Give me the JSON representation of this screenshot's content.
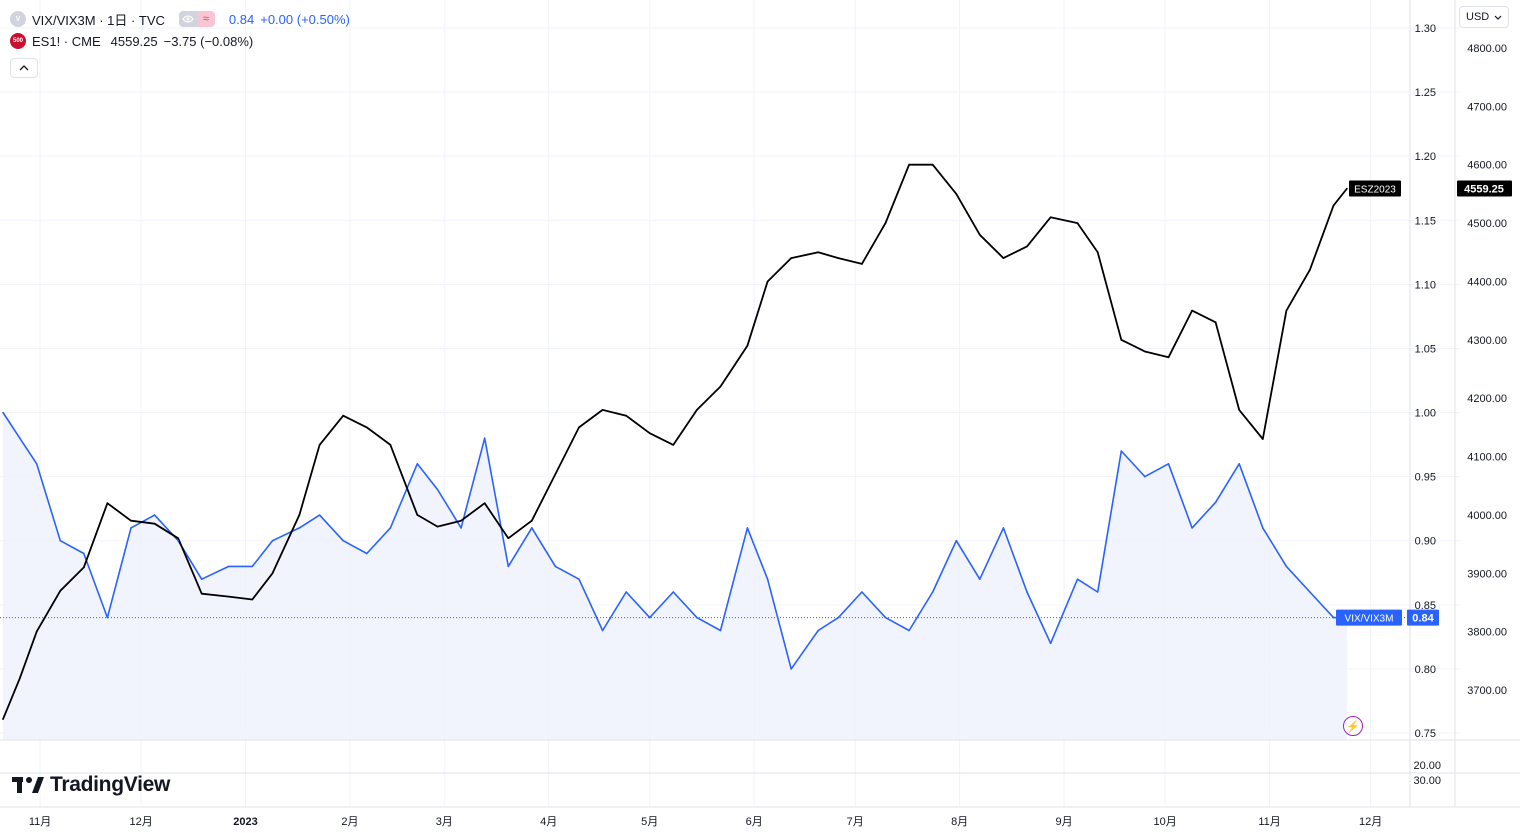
{
  "legend": {
    "main": {
      "badge": "V",
      "title": "VIX/VIX3M · 1日 · TVC",
      "value": "0.84",
      "change": "+0.00 (+0.50%)"
    },
    "compare": {
      "badge": "500",
      "title": "ES1! · CME",
      "value": "4559.25",
      "change": "−3.75 (−0.08%)"
    }
  },
  "currency": {
    "label": "USD"
  },
  "brand": {
    "name": "TradingView"
  },
  "colors": {
    "ratio": "#2962ff",
    "futures": "#000000",
    "grid": "#f0f3fa",
    "axis_text": "#131722",
    "ratio_fill": "#eef1fd"
  },
  "icons": {
    "eye": "eye-icon",
    "wave": "wave-icon",
    "collapse": "chevron-up-icon",
    "lightning": "lightning-icon",
    "currency_caret": "chevron-down-icon"
  },
  "chart_data": {
    "type": "line",
    "x": [
      "2022-10-21",
      "2022-10-26",
      "2022-10-31",
      "2022-11-07",
      "2022-11-14",
      "2022-11-21",
      "2022-11-28",
      "2022-12-05",
      "2022-12-12",
      "2022-12-19",
      "2022-12-27",
      "2023-01-03",
      "2023-01-09",
      "2023-01-17",
      "2023-01-23",
      "2023-01-30",
      "2023-02-06",
      "2023-02-13",
      "2023-02-21",
      "2023-02-27",
      "2023-03-06",
      "2023-03-13",
      "2023-03-20",
      "2023-03-27",
      "2023-04-03",
      "2023-04-10",
      "2023-04-17",
      "2023-04-24",
      "2023-05-01",
      "2023-05-08",
      "2023-05-15",
      "2023-05-22",
      "2023-05-30",
      "2023-06-05",
      "2023-06-12",
      "2023-06-20",
      "2023-06-26",
      "2023-07-03",
      "2023-07-10",
      "2023-07-17",
      "2023-07-24",
      "2023-07-31",
      "2023-08-07",
      "2023-08-14",
      "2023-08-21",
      "2023-08-28",
      "2023-09-05",
      "2023-09-11",
      "2023-09-18",
      "2023-09-25",
      "2023-10-02",
      "2023-10-09",
      "2023-10-16",
      "2023-10-23",
      "2023-10-30",
      "2023-11-06",
      "2023-11-13",
      "2023-11-20",
      "2023-11-24"
    ],
    "series": [
      {
        "name": "VIX/VIX3M",
        "axis": "left",
        "values": [
          1.0,
          0.98,
          0.96,
          0.9,
          0.89,
          0.84,
          0.91,
          0.92,
          0.9,
          0.87,
          0.88,
          0.88,
          0.9,
          0.91,
          0.92,
          0.9,
          0.89,
          0.91,
          0.96,
          0.94,
          0.91,
          0.98,
          0.88,
          0.91,
          0.88,
          0.87,
          0.83,
          0.86,
          0.84,
          0.86,
          0.84,
          0.83,
          0.91,
          0.87,
          0.8,
          0.83,
          0.84,
          0.86,
          0.84,
          0.83,
          0.86,
          0.9,
          0.87,
          0.91,
          0.86,
          0.82,
          0.87,
          0.86,
          0.97,
          0.95,
          0.96,
          0.91,
          0.93,
          0.96,
          0.91,
          0.88,
          0.86,
          0.84,
          0.84
        ]
      },
      {
        "name": "ES1!",
        "axis": "right",
        "values": [
          3650,
          3720,
          3800,
          3870,
          3910,
          4020,
          3990,
          3985,
          3960,
          3865,
          3860,
          3855,
          3900,
          4000,
          4120,
          4170,
          4150,
          4120,
          4000,
          3980,
          3990,
          4020,
          3960,
          3990,
          4070,
          4150,
          4180,
          4170,
          4140,
          4120,
          4180,
          4220,
          4290,
          4400,
          4440,
          4450,
          4440,
          4430,
          4500,
          4600,
          4600,
          4550,
          4480,
          4440,
          4460,
          4510,
          4500,
          4450,
          4300,
          4280,
          4270,
          4350,
          4330,
          4180,
          4130,
          4350,
          4420,
          4530,
          4559.25
        ]
      }
    ],
    "left_axis": {
      "ticks": [
        "0.75",
        "0.80",
        "0.85",
        "0.90",
        "0.95",
        "1.00",
        "1.05",
        "1.10",
        "1.15",
        "1.20",
        "1.25",
        "1.30"
      ],
      "range": [
        0.74,
        1.31
      ]
    },
    "right_axis": {
      "ticks": [
        "3700.00",
        "3800.00",
        "3900.00",
        "4000.00",
        "4100.00",
        "4200.00",
        "4300.00",
        "4400.00",
        "4500.00",
        "4600.00",
        "4700.00",
        "4800.00"
      ],
      "range": [
        3600,
        4830
      ]
    },
    "lower_pane": {
      "ticks": [
        "20.00",
        "30.00"
      ]
    },
    "x_ticks": [
      {
        "label": "11月",
        "date": "2022-11-01"
      },
      {
        "label": "12月",
        "date": "2022-12-01"
      },
      {
        "label": "2023",
        "date": "2023-01-01"
      },
      {
        "label": "2月",
        "date": "2023-02-01"
      },
      {
        "label": "3月",
        "date": "2023-03-01"
      },
      {
        "label": "4月",
        "date": "2023-04-01"
      },
      {
        "label": "5月",
        "date": "2023-05-01"
      },
      {
        "label": "6月",
        "date": "2023-06-01"
      },
      {
        "label": "7月",
        "date": "2023-07-01"
      },
      {
        "label": "8月",
        "date": "2023-08-01"
      },
      {
        "label": "9月",
        "date": "2023-09-01"
      },
      {
        "label": "10月",
        "date": "2023-10-01"
      },
      {
        "label": "11月",
        "date": "2023-11-01"
      },
      {
        "label": "12月",
        "date": "2023-12-01"
      }
    ],
    "price_labels": {
      "futures_tag": "ESZ2023",
      "futures_value": "4559.25",
      "ratio_tag": "VIX/VIX3M",
      "ratio_value": "0.84"
    },
    "grid": true
  }
}
